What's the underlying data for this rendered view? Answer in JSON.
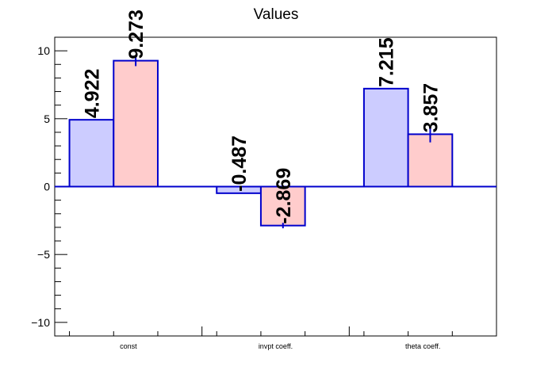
{
  "chart_data": {
    "type": "bar",
    "title": "Values",
    "categories": [
      "const",
      "invpt coeff.",
      "theta coeff."
    ],
    "series": [
      {
        "values": [
          4.922,
          -0.487,
          7.215
        ],
        "errors": [
          0,
          0,
          0
        ]
      },
      {
        "values": [
          9.273,
          -2.869,
          3.857
        ],
        "errors": [
          0.4,
          0.2,
          0.6
        ]
      }
    ],
    "data_labels": [
      [
        "4.922",
        "-0.487",
        "7.215"
      ],
      [
        "9.273",
        "-2.869",
        "3.857"
      ]
    ],
    "ylim": [
      -11,
      11
    ],
    "yticks": [
      -10,
      -5,
      0,
      5,
      10
    ],
    "ytick_labels": [
      "−10",
      "−5",
      "0",
      "5",
      "10"
    ],
    "xlabel": "",
    "ylabel": "",
    "grid": false,
    "legend": "none",
    "colors": {
      "series_fill": [
        "#ccccff",
        "#ffcccc"
      ],
      "bar_edge": "#0000cc",
      "zero_line": "#0000cc",
      "axis": "#000000"
    }
  }
}
